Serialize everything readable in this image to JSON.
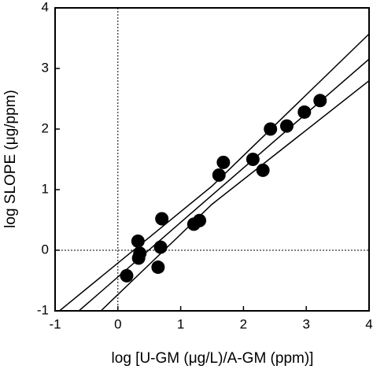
{
  "chart_data": {
    "type": "scatter",
    "x_label": "log [U-GM (μg/L)/A-GM (ppm)]",
    "y_label": "log SLOPE (μg/ppm)",
    "x": [
      0.14,
      0.32,
      0.35,
      0.33,
      0.64,
      0.68,
      0.7,
      1.21,
      1.3,
      1.61,
      1.68,
      2.15,
      2.31,
      2.43,
      2.69,
      2.97,
      3.22
    ],
    "values": [
      -0.42,
      0.15,
      -0.05,
      -0.13,
      -0.28,
      0.05,
      0.52,
      0.43,
      0.49,
      1.24,
      1.45,
      1.5,
      1.32,
      2.0,
      2.05,
      2.28,
      2.47
    ],
    "color": "#000000",
    "lines": [
      {
        "x": [
          -0.93,
          1.5,
          4.04
        ],
        "values": [
          -1,
          1.06,
          3.61
        ]
      },
      {
        "x": [
          -0.62,
          1.5,
          4.04
        ],
        "values": [
          -1,
          0.91,
          3.19
        ]
      },
      {
        "x": [
          -0.27,
          1.5,
          4.04
        ],
        "values": [
          -1,
          0.76,
          2.83
        ]
      }
    ],
    "reference_x": 0,
    "reference_y": 0,
    "xlim": [
      -1,
      4
    ],
    "ylim": [
      -1,
      4
    ],
    "xticks": [
      -1,
      0,
      1,
      2,
      3,
      4
    ],
    "yticks": [
      -1,
      0,
      1,
      2,
      3,
      4
    ]
  }
}
